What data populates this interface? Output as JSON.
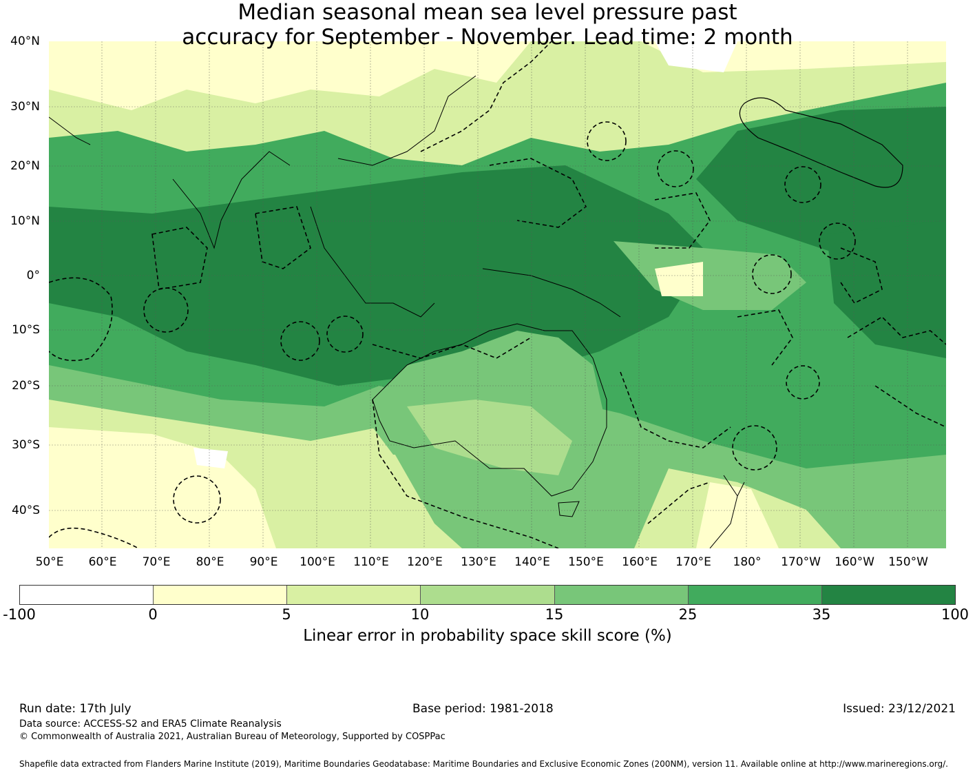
{
  "title": {
    "line1": "Median seasonal mean sea level pressure past",
    "line2": "accuracy for September - November. Lead time: 2 month"
  },
  "map": {
    "lat_labels": [
      "40°N",
      "30°N",
      "20°N",
      "10°N",
      "0°",
      "10°S",
      "20°S",
      "30°S",
      "40°S"
    ],
    "lon_labels": [
      "50°E",
      "60°E",
      "70°E",
      "80°E",
      "90°E",
      "100°E",
      "110°E",
      "120°E",
      "130°E",
      "140°E",
      "150°E",
      "160°E",
      "170°E",
      "180°",
      "170°W",
      "160°W",
      "150°W"
    ],
    "gridlines": true,
    "land_outline_color": "#000000",
    "eez_boundaries_style": "dashed"
  },
  "colorbar": {
    "ticks": [
      "-100",
      "0",
      "5",
      "10",
      "15",
      "25",
      "35",
      "100"
    ],
    "colors": [
      "#ffffff",
      "#ffffcc",
      "#d9f0a3",
      "#addd8e",
      "#78c679",
      "#41ab5d",
      "#238443"
    ],
    "label": "Linear error in probability space skill score (%)"
  },
  "footer": {
    "run_date": "Run date: 17th July",
    "base_period": "Base period: 1981-2018",
    "issued": "Issued: 23/12/2021",
    "data_source": "Data source: ACCESS-S2 and ERA5 Climate Reanalysis",
    "copyright": "© Commonwealth of Australia 2021, Australian Bureau of Meteorology, Supported by COSPPac",
    "shapefile": "Shapefile data extracted from Flanders Marine Institute (2019), Maritime Boundaries Geodatabase: Maritime Boundaries and Exclusive Economic Zones (200NM), version 11. Available online at http://www.marineregions.org/."
  }
}
